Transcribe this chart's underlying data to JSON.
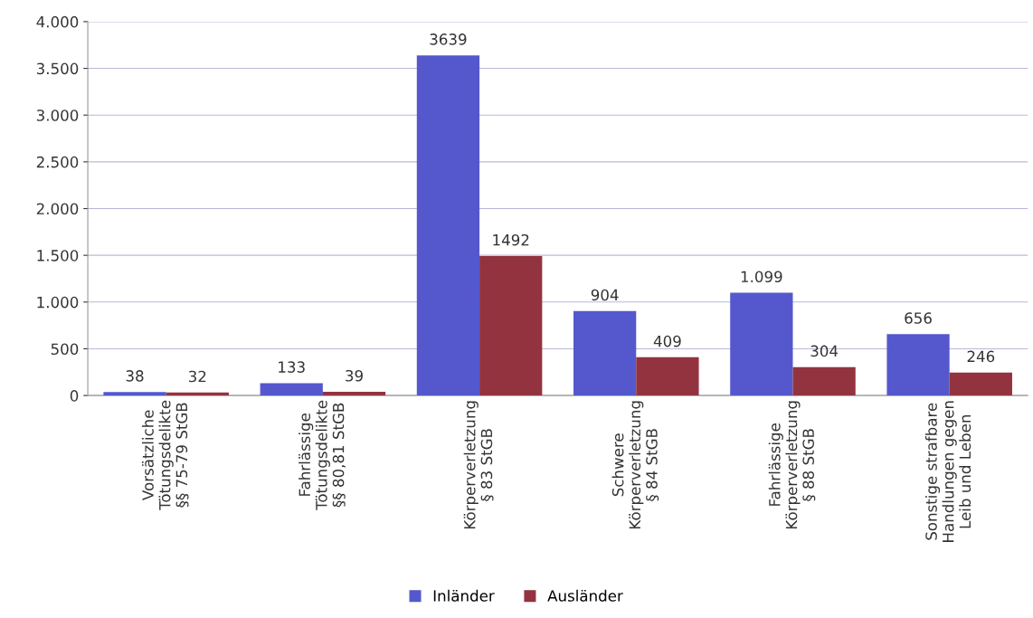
{
  "chart_data": {
    "type": "bar",
    "categories": [
      "Vorsätzliche\nTötungsdelikte\n§§ 75-79 StGB",
      "Fahrlässige\nTötungsdelikte\n§§ 80,81 StGB",
      "Körperverletzung\n§ 83 StGB",
      "Schwere\nKörperverletzung\n§ 84 StGB",
      "Fahrlässige\nKörperverletzung\n§ 88 StGB",
      "Sonstige strafbare\nHandlungen gegen\nLeib und Leben"
    ],
    "series": [
      {
        "name": "Inländer",
        "color": "#5558cc",
        "values": [
          38,
          133,
          3639,
          904,
          1099,
          656
        ],
        "value_labels": [
          "38",
          "133",
          "3639",
          "904",
          "1.099",
          "656"
        ]
      },
      {
        "name": "Ausländer",
        "color": "#93333f",
        "values": [
          32,
          39,
          1492,
          409,
          304,
          246
        ],
        "value_labels": [
          "32",
          "39",
          "1492",
          "409",
          "304",
          "246"
        ]
      }
    ],
    "ylim": [
      0,
      4000
    ],
    "yticks": [
      0,
      {
        "value": 500,
        "label": "500"
      },
      {
        "value": 1000,
        "label": "1.000"
      },
      {
        "value": 1500,
        "label": "1.500"
      },
      {
        "value": 2000,
        "label": "2.000"
      },
      {
        "value": 2500,
        "label": "2.500"
      },
      {
        "value": 3000,
        "label": "3.000"
      },
      {
        "value": 3500,
        "label": "3.500"
      },
      {
        "value": 4000,
        "label": "4.000"
      }
    ],
    "grid": "y",
    "legend": "bottom"
  }
}
